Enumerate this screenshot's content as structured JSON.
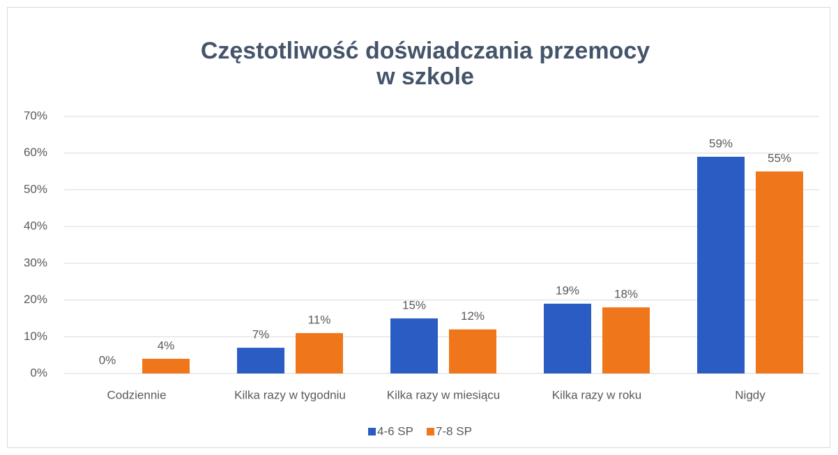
{
  "chart_data": {
    "type": "bar",
    "title": [
      "Częstotliwość doświadczania przemocy",
      "w szkole"
    ],
    "categories": [
      "Codziennie",
      "Kilka razy w tygodniu",
      "Kilka razy w miesiącu",
      "Kilka razy w roku",
      "Nigdy"
    ],
    "series": [
      {
        "name": "4-6 SP",
        "color": "#2a5cc4",
        "values": [
          0,
          7,
          15,
          19,
          59
        ],
        "value_labels": [
          "0%",
          "7%",
          "15%",
          "19%",
          "59%"
        ]
      },
      {
        "name": "7-8 SP",
        "color": "#f0761c",
        "values": [
          4,
          11,
          12,
          18,
          55
        ],
        "value_labels": [
          "4%",
          "11%",
          "12%",
          "18%",
          "55%"
        ]
      }
    ],
    "ylim": [
      0,
      70
    ],
    "yticks": [
      {
        "value": 0,
        "label": "0%"
      },
      {
        "value": 10,
        "label": "10%"
      },
      {
        "value": 20,
        "label": "20%"
      },
      {
        "value": 30,
        "label": "30%"
      },
      {
        "value": 40,
        "label": "40%"
      },
      {
        "value": 50,
        "label": "50%"
      },
      {
        "value": 60,
        "label": "60%"
      },
      {
        "value": 70,
        "label": "70%"
      }
    ],
    "grid": true,
    "legend": "bottom"
  }
}
